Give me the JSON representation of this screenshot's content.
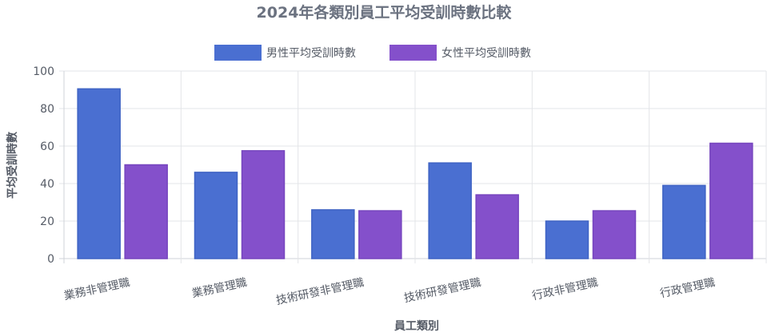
{
  "chart_data": {
    "type": "bar",
    "title": "2024年各類別員工平均受訓時數比較",
    "xlabel": "員工類別",
    "ylabel": "平均受訓時數",
    "ylim": [
      0,
      100
    ],
    "yticks": [
      "0",
      "20",
      "40",
      "60",
      "80",
      "100"
    ],
    "categories": [
      "業務非管理職",
      "業務管理職",
      "技術研發非管理職",
      "技術研發管理職",
      "行政非管理職",
      "行政管理職"
    ],
    "series": [
      {
        "name": "男性平均受訓時數",
        "color": "#4a6fd1",
        "values": [
          90.5,
          46,
          26,
          51,
          20,
          39
        ]
      },
      {
        "name": "女性平均受訓時數",
        "color": "#8450cb",
        "values": [
          50,
          57.5,
          25.5,
          34,
          25.5,
          61.5
        ]
      }
    ],
    "legend": "top-center",
    "grid": true
  }
}
